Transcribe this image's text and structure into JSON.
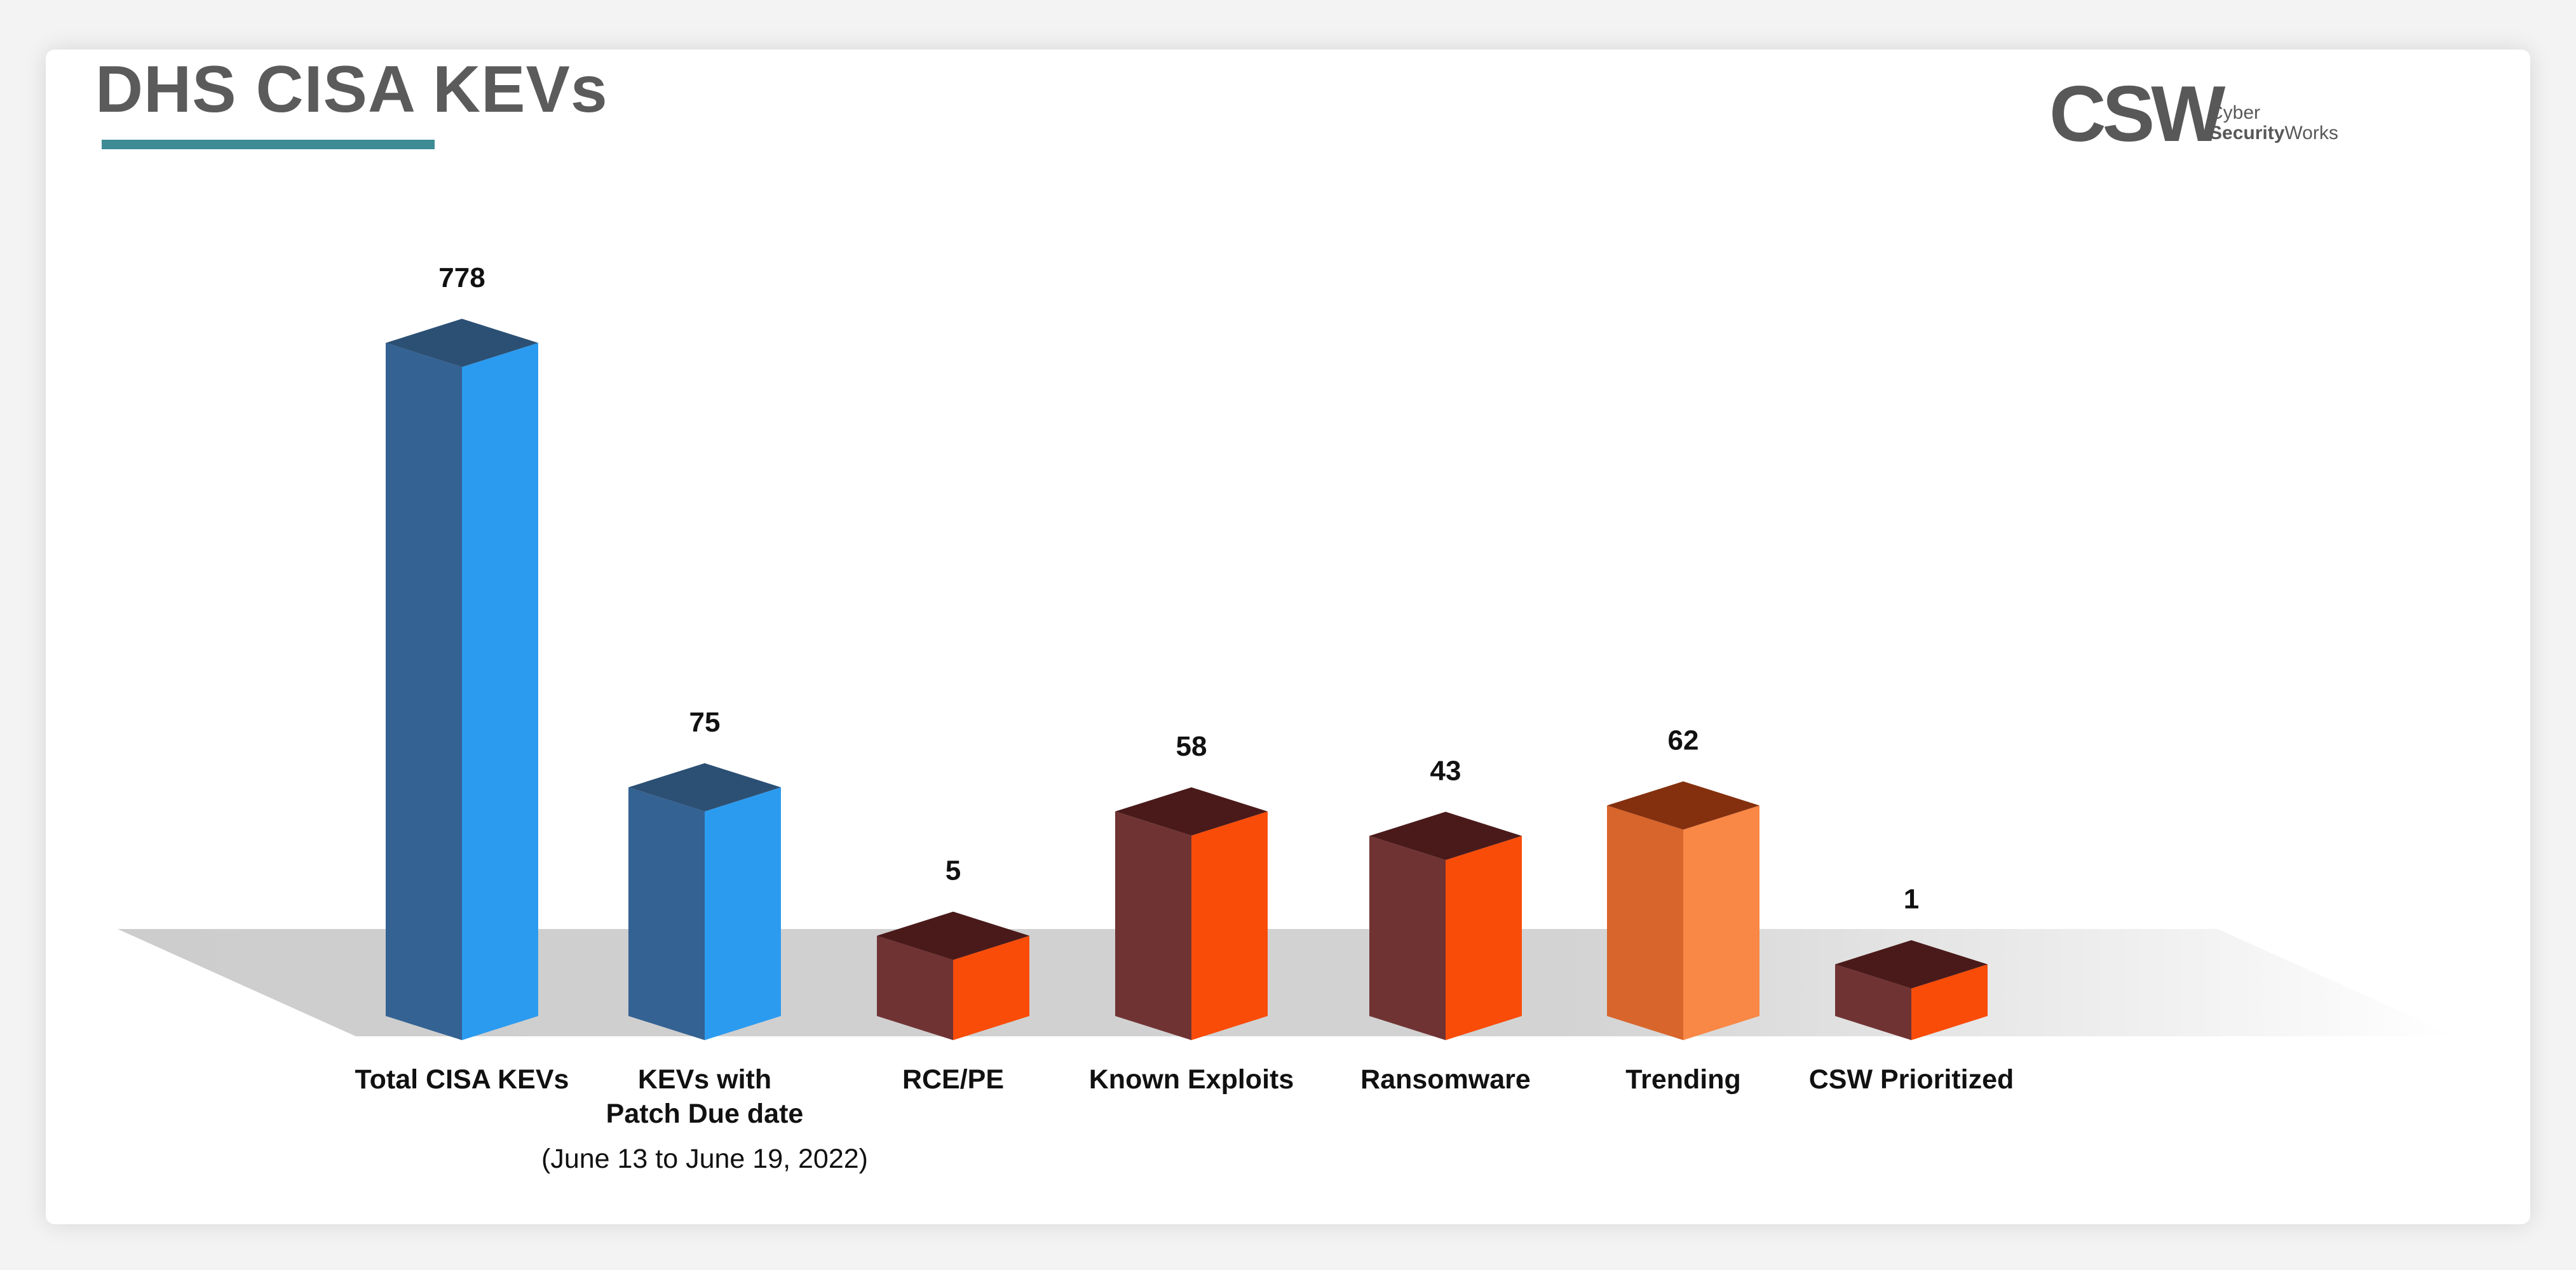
{
  "title": "DHS CISA KEVs",
  "logo": {
    "mark": "CSW",
    "line1": "Cyber",
    "line2_bold": "Security",
    "line2_rest": "Works"
  },
  "colors": {
    "blue_front": "#346293",
    "blue_side": "#2b9bf0",
    "blue_top": "#2c5074",
    "maroon_front": "#703333",
    "orange_side": "#f84c08",
    "maroon_top": "#4a1a1a",
    "trend_front": "#d8652c",
    "trend_side": "#f98746",
    "trend_top": "#84300f",
    "title_underline": "#3d8b95"
  },
  "chart_data": {
    "type": "bar",
    "title": "DHS CISA KEVs",
    "categories": [
      "Total CISA KEVs",
      "KEVs with\nPatch Due date",
      "RCE/PE",
      "Known Exploits",
      "Ransomware",
      "Trending",
      "CSW Prioritized"
    ],
    "values": [
      778,
      75,
      5,
      58,
      43,
      62,
      1
    ],
    "subtitle": "(June 13 to June 19, 2022)",
    "grid": false,
    "style": "3d-box"
  }
}
